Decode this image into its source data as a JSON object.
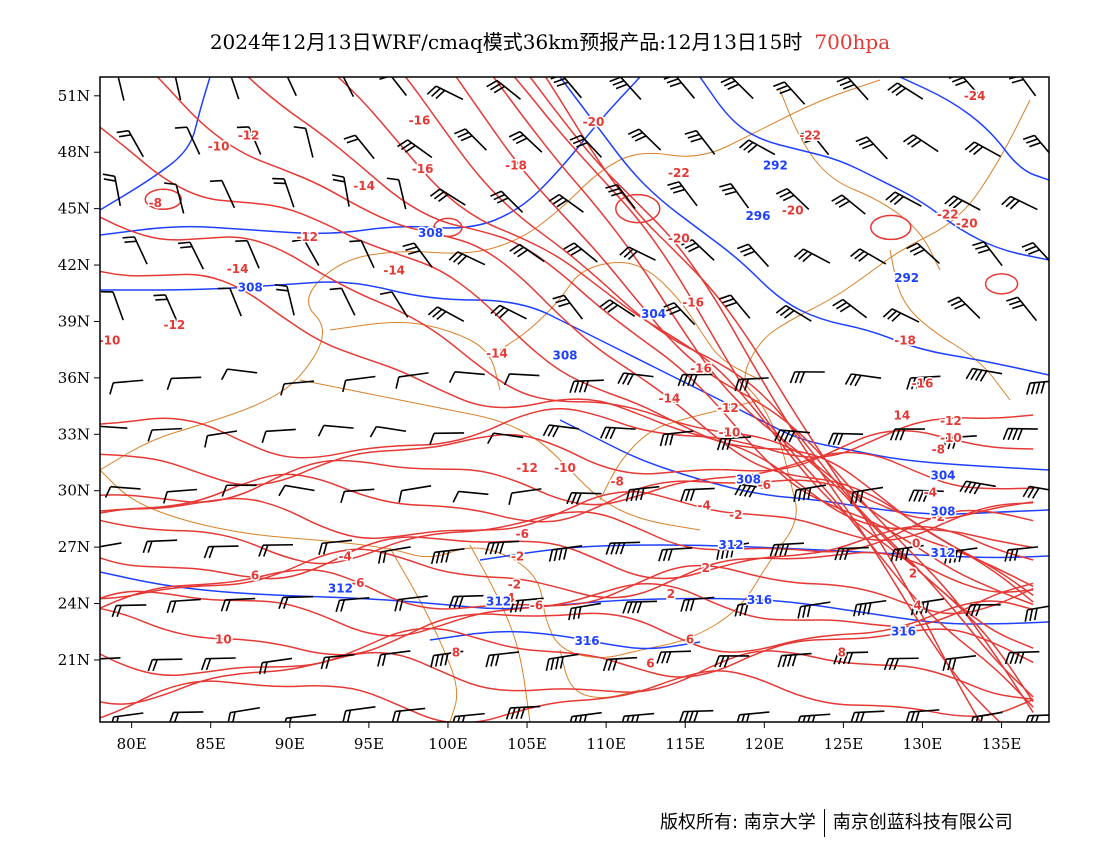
{
  "title": {
    "main": "2024年12月13日WRF/cmaq模式36km预报产品:12月13日15时",
    "level": "700hpa"
  },
  "colors": {
    "temperature": "#e53935",
    "height": "#1e40ff",
    "boundary": "#d9822b",
    "wind": "#000000"
  },
  "axes": {
    "lon_ticks": [
      "80E",
      "85E",
      "90E",
      "95E",
      "100E",
      "105E",
      "110E",
      "115E",
      "120E",
      "125E",
      "130E",
      "135E"
    ],
    "lat_ticks": [
      "51N",
      "48N",
      "45N",
      "42N",
      "39N",
      "36N",
      "33N",
      "30N",
      "27N",
      "24N",
      "21N"
    ]
  },
  "temperature_labels": [
    {
      "text": "-10",
      "lon": 85.5,
      "lat": 48.3
    },
    {
      "text": "-12",
      "lon": 87.4,
      "lat": 48.9
    },
    {
      "text": "-16",
      "lon": 98.2,
      "lat": 49.7
    },
    {
      "text": "-20",
      "lon": 109.2,
      "lat": 49.6
    },
    {
      "text": "-22",
      "lon": 122.9,
      "lat": 48.9
    },
    {
      "text": "-24",
      "lon": 133.3,
      "lat": 51.0
    },
    {
      "text": "-16",
      "lon": 98.4,
      "lat": 47.1
    },
    {
      "text": "-18",
      "lon": 104.3,
      "lat": 47.3
    },
    {
      "text": "-22",
      "lon": 114.6,
      "lat": 46.9
    },
    {
      "text": "-14",
      "lon": 94.7,
      "lat": 46.2
    },
    {
      "text": "-8",
      "lon": 81.5,
      "lat": 45.3
    },
    {
      "text": "-20",
      "lon": 121.8,
      "lat": 44.9
    },
    {
      "text": "-22",
      "lon": 131.6,
      "lat": 44.7
    },
    {
      "text": "-20",
      "lon": 132.8,
      "lat": 44.2
    },
    {
      "text": "-12",
      "lon": 91.1,
      "lat": 43.5
    },
    {
      "text": "-20",
      "lon": 114.6,
      "lat": 43.4
    },
    {
      "text": "-14",
      "lon": 86.7,
      "lat": 41.8
    },
    {
      "text": "-14",
      "lon": 96.6,
      "lat": 41.7
    },
    {
      "text": "-16",
      "lon": 115.5,
      "lat": 40.0
    },
    {
      "text": "-12",
      "lon": 82.7,
      "lat": 38.8
    },
    {
      "text": "-10",
      "lon": 78.6,
      "lat": 38.0
    },
    {
      "text": "-18",
      "lon": 128.9,
      "lat": 38.0
    },
    {
      "text": "-14",
      "lon": 103.1,
      "lat": 37.3
    },
    {
      "text": "-16",
      "lon": 116.0,
      "lat": 36.5
    },
    {
      "text": "-16",
      "lon": 130.0,
      "lat": 35.7
    },
    {
      "text": "-14",
      "lon": 114.0,
      "lat": 34.9
    },
    {
      "text": "-12",
      "lon": 117.7,
      "lat": 34.4
    },
    {
      "text": "14",
      "lon": 128.7,
      "lat": 34.0
    },
    {
      "text": "-12",
      "lon": 131.8,
      "lat": 33.7
    },
    {
      "text": "-10",
      "lon": 117.8,
      "lat": 33.1
    },
    {
      "text": "-10",
      "lon": 131.8,
      "lat": 32.8
    },
    {
      "text": "-8",
      "lon": 131.0,
      "lat": 32.2
    },
    {
      "text": "-12",
      "lon": 105.0,
      "lat": 31.2
    },
    {
      "text": "-10",
      "lon": 107.4,
      "lat": 31.2
    },
    {
      "text": "-8",
      "lon": 110.7,
      "lat": 30.5
    },
    {
      "text": "-6",
      "lon": 120.0,
      "lat": 30.3
    },
    {
      "text": "-4",
      "lon": 130.5,
      "lat": 29.9
    },
    {
      "text": "-4",
      "lon": 116.2,
      "lat": 29.2
    },
    {
      "text": "-2",
      "lon": 118.2,
      "lat": 28.7
    },
    {
      "text": "-2",
      "lon": 131.0,
      "lat": 28.6
    },
    {
      "text": "-6",
      "lon": 104.7,
      "lat": 27.7
    },
    {
      "text": "0",
      "lon": 129.6,
      "lat": 27.2
    },
    {
      "text": "-2",
      "lon": 104.4,
      "lat": 26.5
    },
    {
      "text": "-4",
      "lon": 93.5,
      "lat": 26.5
    },
    {
      "text": "2",
      "lon": 116.3,
      "lat": 25.9
    },
    {
      "text": "2",
      "lon": 129.4,
      "lat": 25.6
    },
    {
      "text": "6",
      "lon": 87.8,
      "lat": 25.5
    },
    {
      "text": "-6",
      "lon": 94.3,
      "lat": 25.1
    },
    {
      "text": "-2",
      "lon": 104.2,
      "lat": 25.0
    },
    {
      "text": "-4",
      "lon": 103.8,
      "lat": 24.3
    },
    {
      "text": "2",
      "lon": 114.1,
      "lat": 24.5
    },
    {
      "text": "4",
      "lon": 129.7,
      "lat": 23.9
    },
    {
      "text": "-6",
      "lon": 105.6,
      "lat": 23.9
    },
    {
      "text": "6",
      "lon": 128.6,
      "lat": 22.5
    },
    {
      "text": "10",
      "lon": 85.8,
      "lat": 22.1
    },
    {
      "text": "6",
      "lon": 115.3,
      "lat": 22.1
    },
    {
      "text": "8",
      "lon": 100.5,
      "lat": 21.4
    },
    {
      "text": "8",
      "lon": 124.9,
      "lat": 21.4
    },
    {
      "text": "6",
      "lon": 112.8,
      "lat": 20.8
    }
  ],
  "height_labels": [
    {
      "text": "292",
      "lon": 120.7,
      "lat": 47.3
    },
    {
      "text": "296",
      "lon": 119.6,
      "lat": 44.6
    },
    {
      "text": "308",
      "lon": 98.9,
      "lat": 43.7
    },
    {
      "text": "308",
      "lon": 87.5,
      "lat": 40.8
    },
    {
      "text": "292",
      "lon": 129.0,
      "lat": 41.3
    },
    {
      "text": "304",
      "lon": 113.0,
      "lat": 39.4
    },
    {
      "text": "308",
      "lon": 107.4,
      "lat": 37.2
    },
    {
      "text": "304",
      "lon": 131.3,
      "lat": 30.8
    },
    {
      "text": "308",
      "lon": 119.0,
      "lat": 30.6
    },
    {
      "text": "308",
      "lon": 131.3,
      "lat": 28.9
    },
    {
      "text": "312",
      "lon": 117.9,
      "lat": 27.1
    },
    {
      "text": "312",
      "lon": 131.3,
      "lat": 26.7
    },
    {
      "text": "312",
      "lon": 93.2,
      "lat": 24.8
    },
    {
      "text": "312",
      "lon": 103.2,
      "lat": 24.1
    },
    {
      "text": "316",
      "lon": 119.7,
      "lat": 24.2
    },
    {
      "text": "316",
      "lon": 128.8,
      "lat": 22.5
    },
    {
      "text": "316",
      "lon": 108.8,
      "lat": 22.0
    }
  ],
  "footer": {
    "left": "版权所有: 南京大学",
    "right": "南京创蓝科技有限公司"
  }
}
